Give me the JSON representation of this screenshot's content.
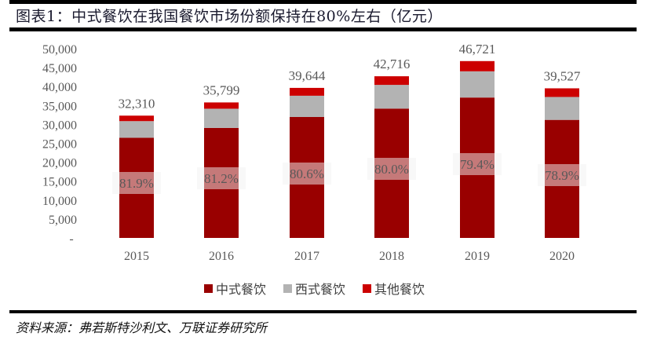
{
  "title": "图表1：中式餐饮在我国餐饮市场份额保持在80%左右（亿元）",
  "source": "资料来源：弗若斯特沙利文、万联证券研究所",
  "colors": {
    "chinese": "#990000",
    "western": "#b3b3b3",
    "other": "#cc0000",
    "text": "#595959",
    "pct_box": "#f0f0f0"
  },
  "chart_data": {
    "type": "bar",
    "stacked": true,
    "title": "中式餐饮在我国餐饮市场份额保持在80%左右（亿元）",
    "categories": [
      "2015",
      "2016",
      "2017",
      "2018",
      "2019",
      "2020"
    ],
    "series": [
      {
        "name": "中式餐饮",
        "values": [
          26462,
          29069,
          31953,
          34173,
          37096,
          31187
        ]
      },
      {
        "name": "西式餐饮",
        "values": [
          4398,
          5070,
          5616,
          6263,
          6925,
          6060
        ]
      },
      {
        "name": "其他餐饮",
        "values": [
          1450,
          1660,
          2075,
          2280,
          2700,
          2280
        ]
      }
    ],
    "totals": [
      "32,310",
      "35,799",
      "39,644",
      "42,716",
      "46,721",
      "39,527"
    ],
    "share_labels": [
      "81.9%",
      "81.2%",
      "80.6%",
      "80.0%",
      "79.4%",
      "78.9%"
    ],
    "ylim": [
      0,
      50000
    ],
    "yticks": [
      "-",
      "5,000",
      "10,000",
      "15,000",
      "20,000",
      "25,000",
      "30,000",
      "35,000",
      "40,000",
      "45,000",
      "50,000"
    ],
    "legend_position": "bottom",
    "grid": false
  }
}
